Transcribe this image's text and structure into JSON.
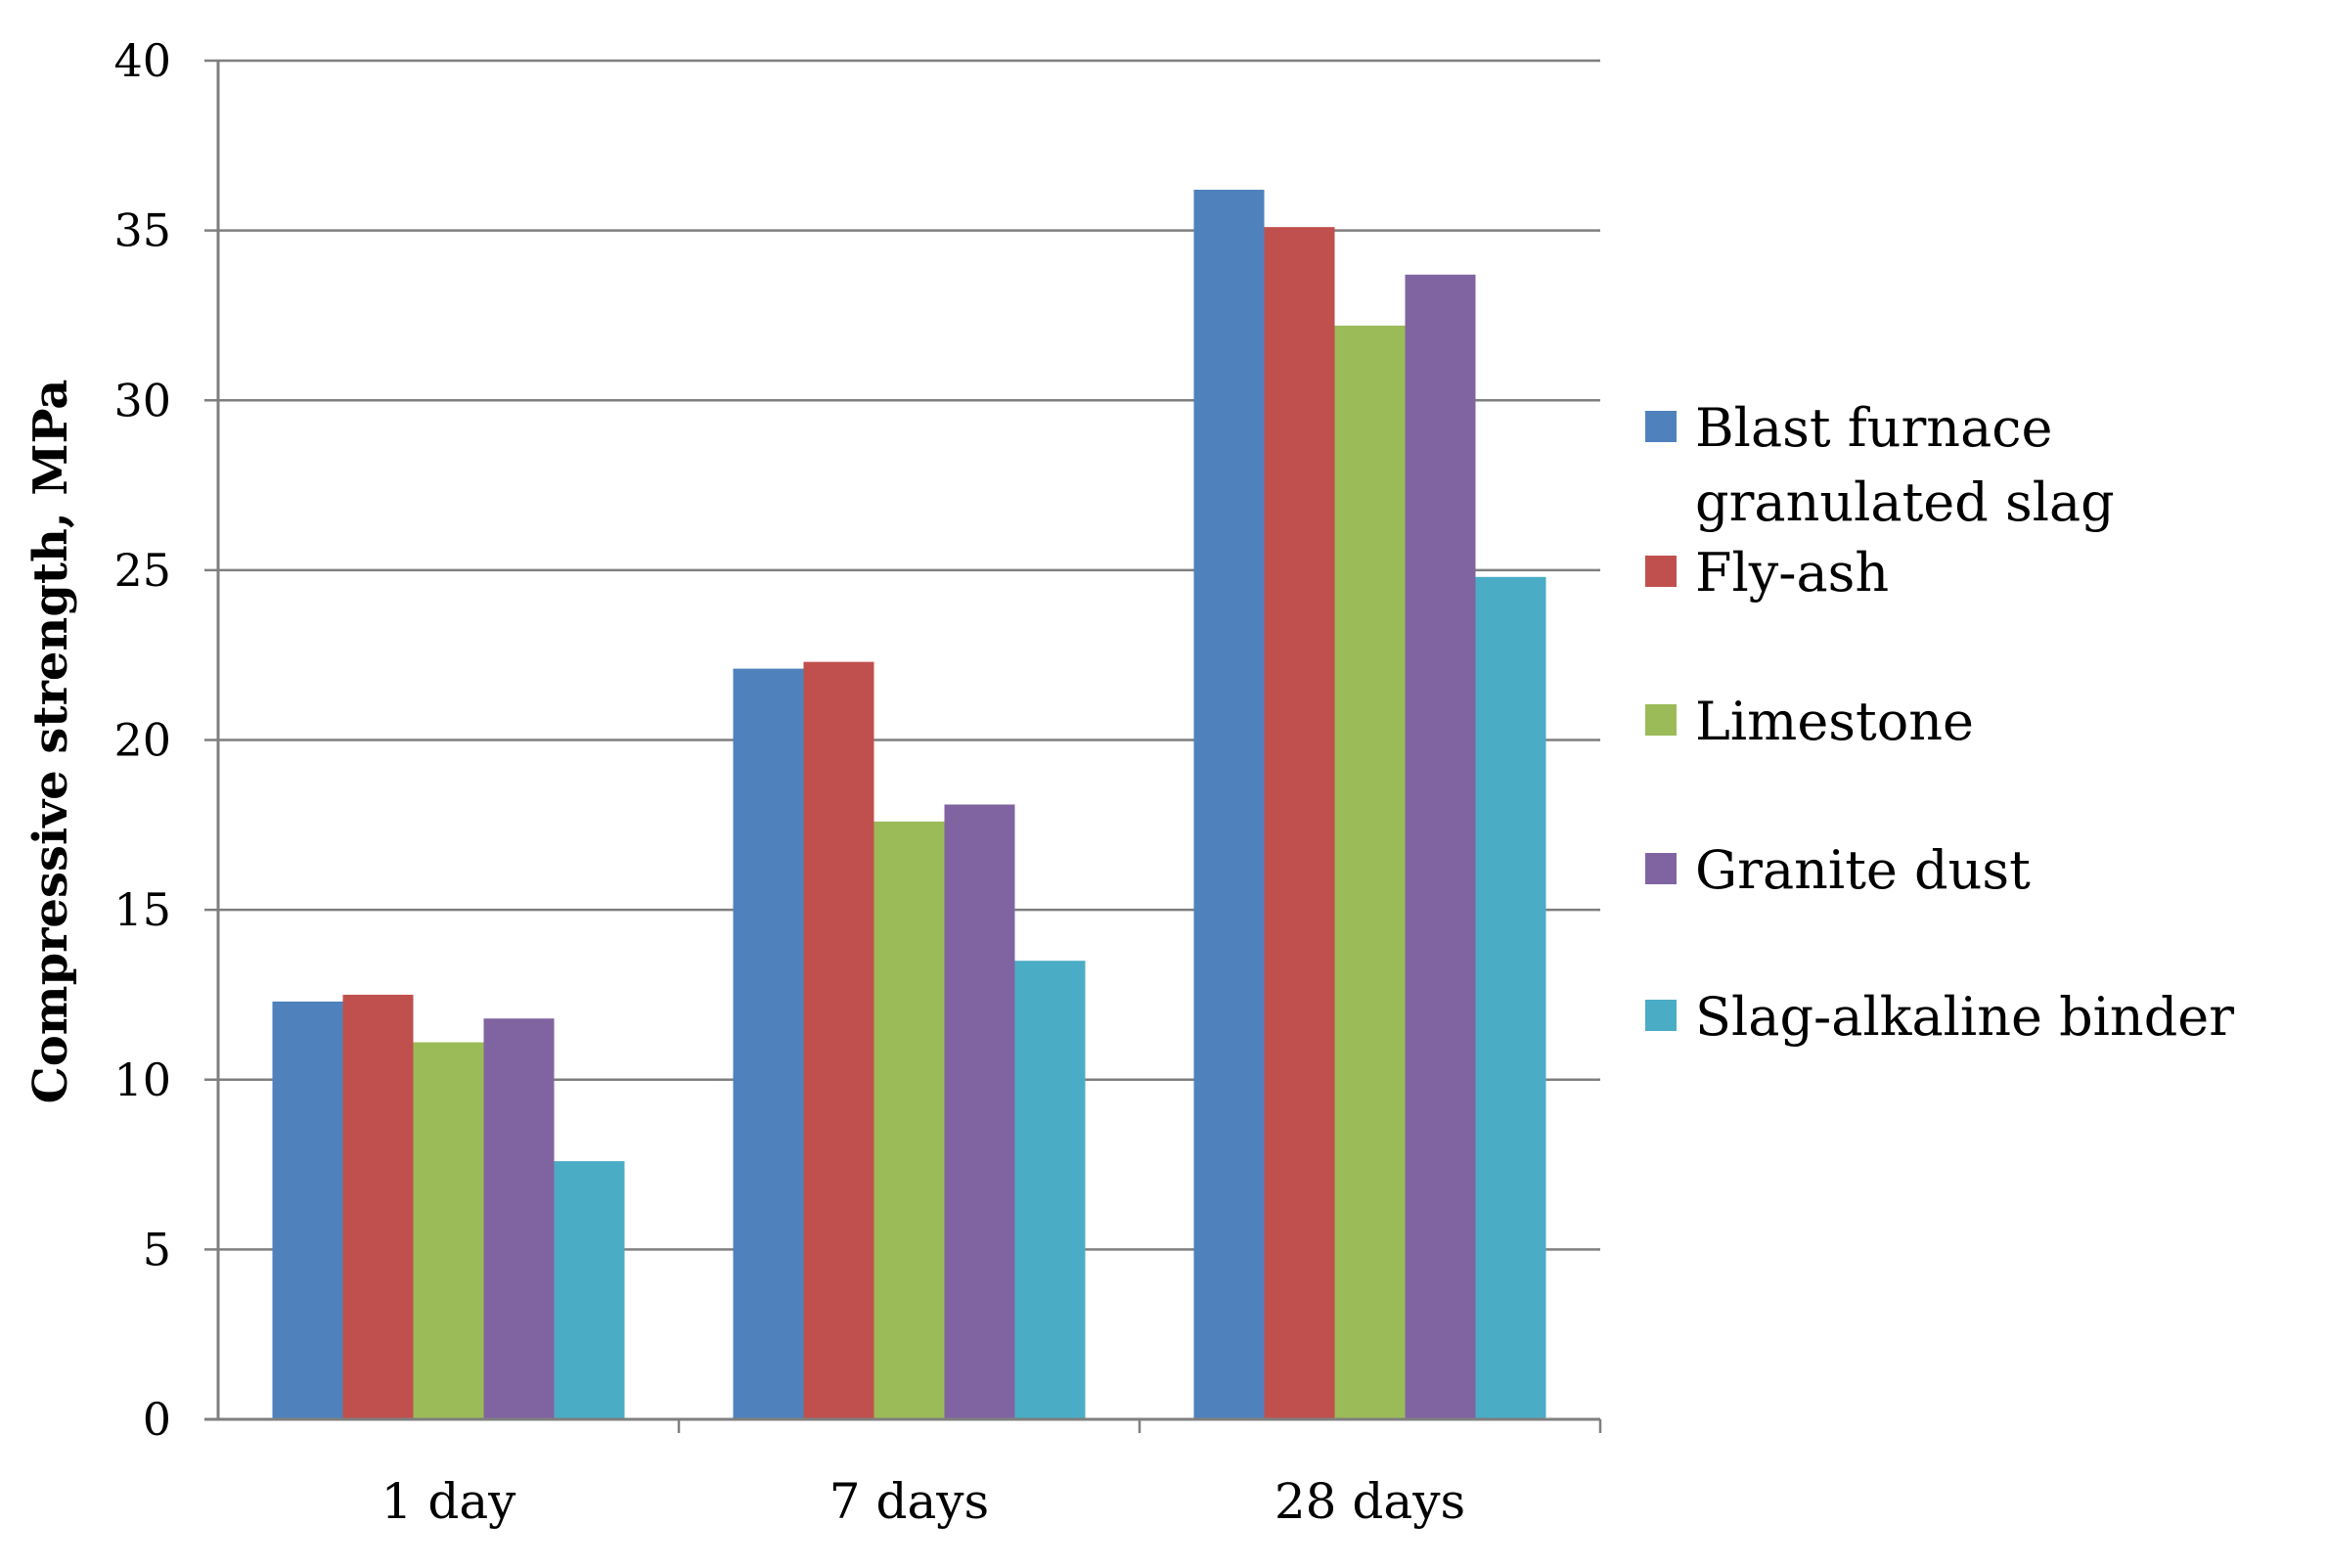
{
  "chart_data": {
    "type": "bar",
    "title": "",
    "xlabel": "",
    "ylabel": "Compressive strength, MPa",
    "ylim": [
      0,
      40
    ],
    "yticks": [
      0,
      5,
      10,
      15,
      20,
      25,
      30,
      35,
      40
    ],
    "grid": true,
    "legend_position": "right",
    "categories": [
      "1 day",
      "7 days",
      "28 days"
    ],
    "series": [
      {
        "name": "Blast furnace granulated slag",
        "color": "#4F81BD",
        "values": [
          12.3,
          22.1,
          36.2
        ]
      },
      {
        "name": "Fly-ash",
        "color": "#C0504D",
        "values": [
          12.5,
          22.3,
          35.1
        ]
      },
      {
        "name": "Limestone",
        "color": "#9BBB59",
        "values": [
          11.1,
          17.6,
          32.2
        ]
      },
      {
        "name": "Granite dust",
        "color": "#8064A2",
        "values": [
          11.8,
          18.1,
          33.7
        ]
      },
      {
        "name": "Slag-alkaline binder",
        "color": "#4BACC6",
        "values": [
          7.6,
          13.5,
          24.8
        ]
      }
    ]
  }
}
